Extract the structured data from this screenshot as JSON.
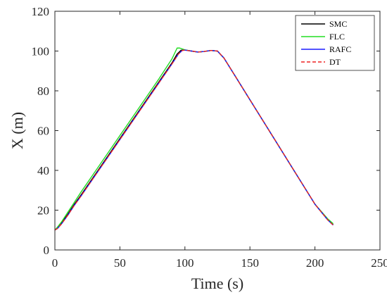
{
  "chart_data": {
    "type": "line",
    "xlabel": "Time (s)",
    "ylabel": "X (m)",
    "xlim": [
      0,
      250
    ],
    "ylim": [
      0,
      120
    ],
    "xticks": [
      "0",
      "50",
      "100",
      "150",
      "200",
      "250"
    ],
    "yticks": [
      "0",
      "20",
      "40",
      "60",
      "80",
      "100",
      "120"
    ],
    "grid": false,
    "legend_position": "top-right",
    "series": [
      {
        "name": "SMC",
        "color": "#000000",
        "dash": "solid",
        "x": [
          0,
          2,
          5,
          10,
          15,
          20,
          30,
          40,
          50,
          60,
          70,
          80,
          90,
          94,
          97,
          100,
          105,
          110,
          115,
          120,
          125,
          130,
          140,
          150,
          160,
          170,
          180,
          190,
          200,
          210,
          214
        ],
        "y": [
          10,
          11,
          13.5,
          18,
          23,
          27.5,
          37,
          46.5,
          56,
          65.5,
          75,
          84.5,
          94,
          98.5,
          100.4,
          100.5,
          100,
          99.5,
          99.8,
          100.3,
          100,
          96.5,
          86,
          75.5,
          65,
          54.5,
          44,
          33.5,
          23,
          15,
          12.8
        ]
      },
      {
        "name": "FLC",
        "color": "#22dd22",
        "dash": "solid",
        "x": [
          0,
          2,
          5,
          10,
          15,
          20,
          30,
          40,
          50,
          60,
          70,
          80,
          90,
          94,
          96,
          100,
          105,
          110,
          115,
          120,
          125,
          130,
          140,
          150,
          160,
          170,
          180,
          190,
          200,
          210,
          214
        ],
        "y": [
          10,
          11.5,
          14,
          19,
          24,
          29,
          38.5,
          48,
          57.5,
          67,
          76.5,
          86,
          96,
          101.5,
          101.5,
          100.6,
          100,
          99.5,
          99.8,
          100.3,
          100,
          96.5,
          86,
          75.5,
          65,
          54.5,
          44,
          33.5,
          23,
          15.5,
          13.2
        ]
      },
      {
        "name": "RAFC",
        "color": "#1a1aff",
        "dash": "solid",
        "x": [
          0,
          2,
          5,
          10,
          15,
          20,
          30,
          40,
          50,
          60,
          70,
          80,
          90,
          95,
          98,
          100,
          105,
          110,
          115,
          120,
          125,
          130,
          140,
          150,
          160,
          170,
          180,
          190,
          200,
          210,
          214
        ],
        "y": [
          10,
          10.8,
          13,
          17.5,
          22.5,
          27,
          36.5,
          46,
          55.5,
          65,
          74.5,
          84,
          93.5,
          98.5,
          100.3,
          100.5,
          100,
          99.5,
          99.8,
          100.3,
          100,
          96.5,
          86,
          75.5,
          65,
          54.5,
          44,
          33.5,
          23,
          15,
          12.5
        ]
      },
      {
        "name": "DT",
        "color": "#ee2222",
        "dash": "dashed",
        "x": [
          0,
          2,
          5,
          10,
          15,
          20,
          30,
          40,
          50,
          60,
          70,
          80,
          90,
          95,
          98,
          100,
          105,
          110,
          115,
          120,
          125,
          130,
          140,
          150,
          160,
          170,
          180,
          190,
          200,
          210,
          214
        ],
        "y": [
          10,
          10.8,
          13,
          17.5,
          22.5,
          27,
          36.5,
          46,
          55.5,
          65,
          74.5,
          84,
          93.5,
          98.5,
          100.3,
          100.5,
          100,
          99.5,
          99.8,
          100.3,
          100,
          96.5,
          86,
          75.5,
          65,
          54.5,
          44,
          33.5,
          23,
          15,
          12.5
        ]
      }
    ]
  }
}
